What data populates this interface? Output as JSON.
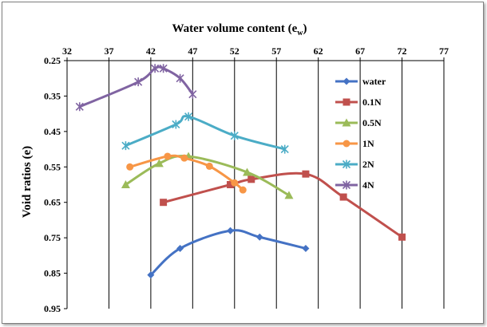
{
  "chart_data": {
    "type": "line",
    "title": "",
    "xlabel": "Water volume content (e",
    "xlabel_sub": "w",
    "xlabel_close": ")",
    "ylabel": "Void ratios  (e)",
    "x_ticks": [
      "32",
      "37",
      "42",
      "47",
      "52",
      "57",
      "62",
      "67",
      "72",
      "77"
    ],
    "y_ticks": [
      "0.25",
      "0.35",
      "0.45",
      "0.55",
      "0.65",
      "0.75",
      "0.85",
      "0.95"
    ],
    "xlim": [
      32,
      77
    ],
    "ylim": [
      0.25,
      0.95
    ],
    "y_inverted": true,
    "x_axis_position": "top",
    "grid": "vertical",
    "legend_position": "right",
    "series": [
      {
        "name": "water",
        "color": "#4472c4",
        "marker": "diamond",
        "x": [
          42,
          45.5,
          51.5,
          55,
          60.5
        ],
        "y": [
          0.855,
          0.78,
          0.73,
          0.748,
          0.78
        ]
      },
      {
        "name": "0.1N",
        "color": "#c0504d",
        "marker": "square",
        "x": [
          43.5,
          51.5,
          54,
          60.5,
          65,
          72
        ],
        "y": [
          0.65,
          0.6,
          0.585,
          0.57,
          0.635,
          0.748
        ]
      },
      {
        "name": "0.5N",
        "color": "#9bbb59",
        "marker": "triangle",
        "x": [
          39,
          43,
          46.5,
          53.5,
          58.5
        ],
        "y": [
          0.6,
          0.54,
          0.52,
          0.565,
          0.63
        ]
      },
      {
        "name": "1N",
        "color": "#f79646",
        "marker": "circle",
        "x": [
          39.5,
          44,
          46,
          49,
          52,
          53
        ],
        "y": [
          0.55,
          0.52,
          0.525,
          0.548,
          0.595,
          0.615
        ]
      },
      {
        "name": "2N",
        "color": "#4bacc6",
        "marker": "star",
        "x": [
          39,
          45,
          46.5,
          52,
          58
        ],
        "y": [
          0.49,
          0.43,
          0.408,
          0.462,
          0.5
        ]
      },
      {
        "name": "4N",
        "color": "#8064a2",
        "marker": "star",
        "x": [
          33.5,
          40.5,
          42.5,
          43.5,
          45.5,
          47
        ],
        "y": [
          0.38,
          0.31,
          0.272,
          0.272,
          0.3,
          0.345
        ]
      }
    ]
  }
}
